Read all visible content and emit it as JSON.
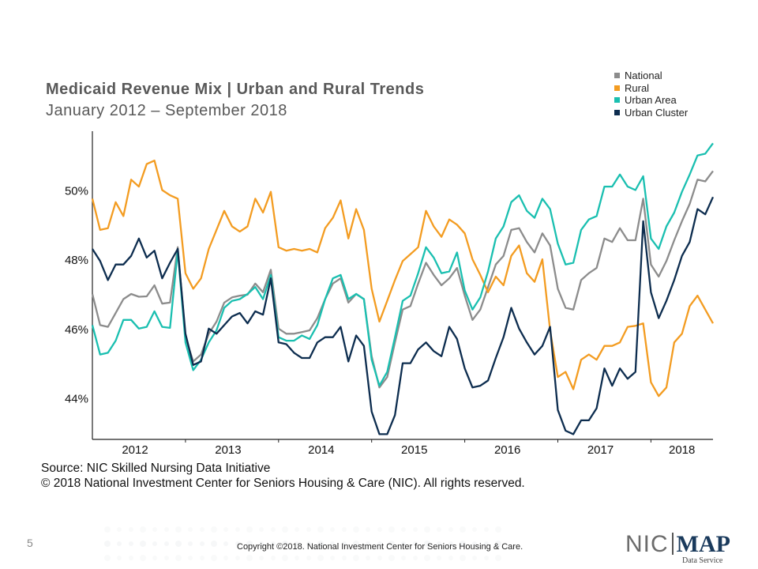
{
  "chart_data": {
    "type": "line",
    "title": "Medicaid Revenue Mix | Urban and Rural Trends",
    "subtitle": "January 2012 – September 2018",
    "y_ticks": [
      44,
      46,
      48,
      50
    ],
    "y_tick_labels": [
      "44%",
      "46%",
      "48%",
      "50%"
    ],
    "ylim": [
      42.8,
      51.7
    ],
    "x_start": "2012-01",
    "x_end": "2018-09",
    "x_tick_labels": [
      "2012",
      "2013",
      "2014",
      "2015",
      "2016",
      "2017",
      "2018"
    ],
    "legend_position": "top-right",
    "series": [
      {
        "name": "National",
        "color": "#8c8c8c",
        "values": [
          47.0,
          46.1,
          46.05,
          46.45,
          46.85,
          47.0,
          46.92,
          46.93,
          47.25,
          46.72,
          46.75,
          48.35,
          45.75,
          45.05,
          45.25,
          45.85,
          46.2,
          46.75,
          46.9,
          46.95,
          46.98,
          47.3,
          47.05,
          47.7,
          46.0,
          45.85,
          45.85,
          45.9,
          45.95,
          46.3,
          46.85,
          47.3,
          47.45,
          46.75,
          47.0,
          46.85,
          45.2,
          44.3,
          44.6,
          45.6,
          46.55,
          46.65,
          47.3,
          47.9,
          47.55,
          47.25,
          47.45,
          47.75,
          46.95,
          46.25,
          46.55,
          47.2,
          47.85,
          48.1,
          48.85,
          48.9,
          48.5,
          48.2,
          48.75,
          48.4,
          47.15,
          46.6,
          46.55,
          47.4,
          47.6,
          47.75,
          48.6,
          48.5,
          48.9,
          48.55,
          48.55,
          49.75,
          47.85,
          47.5,
          47.95,
          48.55,
          49.1,
          49.6,
          50.3,
          50.25,
          50.55
        ]
      },
      {
        "name": "Rural",
        "color": "#f39c21",
        "values": [
          49.75,
          48.85,
          48.9,
          49.65,
          49.25,
          50.3,
          50.1,
          50.75,
          50.85,
          50.0,
          49.85,
          49.75,
          47.6,
          47.15,
          47.45,
          48.3,
          48.85,
          49.4,
          48.95,
          48.8,
          48.95,
          49.75,
          49.35,
          49.95,
          48.35,
          48.25,
          48.3,
          48.25,
          48.3,
          48.2,
          48.9,
          49.2,
          49.7,
          48.6,
          49.45,
          48.85,
          47.15,
          46.2,
          46.8,
          47.4,
          47.95,
          48.15,
          48.35,
          49.4,
          48.95,
          48.65,
          49.15,
          49.0,
          48.75,
          48.0,
          47.55,
          47.05,
          47.5,
          47.25,
          48.1,
          48.4,
          47.6,
          47.35,
          48.0,
          45.95,
          44.6,
          44.75,
          44.25,
          45.1,
          45.25,
          45.1,
          45.5,
          45.5,
          45.6,
          46.05,
          46.08,
          46.15,
          44.45,
          44.05,
          44.3,
          45.6,
          45.85,
          46.65,
          46.95,
          46.55,
          46.15
        ]
      },
      {
        "name": "Urban Area",
        "color": "#1abfb0",
        "values": [
          46.1,
          45.25,
          45.3,
          45.65,
          46.25,
          46.25,
          46.0,
          46.05,
          46.5,
          46.05,
          46.02,
          48.25,
          45.6,
          44.8,
          45.1,
          45.6,
          45.95,
          46.6,
          46.8,
          46.85,
          47.0,
          47.2,
          46.85,
          47.55,
          45.75,
          45.65,
          45.65,
          45.8,
          45.7,
          46.1,
          46.85,
          47.45,
          47.55,
          46.85,
          47.0,
          46.85,
          45.1,
          44.35,
          44.75,
          45.75,
          46.8,
          46.95,
          47.6,
          48.35,
          48.05,
          47.6,
          47.65,
          48.2,
          47.1,
          46.55,
          46.9,
          47.65,
          48.6,
          48.95,
          49.65,
          49.85,
          49.4,
          49.2,
          49.75,
          49.45,
          48.45,
          47.85,
          47.9,
          48.85,
          49.15,
          49.25,
          50.1,
          50.1,
          50.45,
          50.1,
          50.0,
          50.4,
          48.6,
          48.3,
          48.95,
          49.35,
          49.95,
          50.45,
          51.0,
          51.05,
          51.35
        ]
      },
      {
        "name": "Urban Cluster",
        "color": "#0d2d4f",
        "values": [
          48.3,
          47.95,
          47.4,
          47.85,
          47.85,
          48.1,
          48.6,
          48.05,
          48.25,
          47.45,
          47.9,
          48.3,
          45.85,
          44.95,
          45.05,
          46.0,
          45.85,
          46.1,
          46.35,
          46.45,
          46.15,
          46.5,
          46.4,
          47.45,
          45.6,
          45.55,
          45.3,
          45.15,
          45.15,
          45.6,
          45.75,
          45.75,
          46.05,
          45.05,
          45.8,
          45.5,
          43.6,
          42.95,
          42.95,
          43.5,
          45.0,
          45.0,
          45.4,
          45.6,
          45.35,
          45.2,
          46.05,
          45.7,
          44.85,
          44.3,
          44.35,
          44.5,
          45.15,
          45.75,
          46.6,
          46.0,
          45.6,
          45.25,
          45.5,
          46.05,
          43.65,
          43.05,
          42.95,
          43.35,
          43.35,
          43.7,
          44.85,
          44.35,
          44.85,
          44.55,
          44.75,
          49.1,
          47.05,
          46.3,
          46.8,
          47.4,
          48.1,
          48.5,
          49.45,
          49.3,
          49.8
        ]
      }
    ]
  },
  "footer": {
    "source_line": "Source: NIC Skilled Nursing Data Initiative",
    "copyright_line": "© 2018 National Investment Center for Seniors Housing & Care (NIC). All rights reserved.",
    "page_number": "5",
    "copyright_small": "Copyright ©2018. National Investment Center for Seniors Housing & Care.",
    "logo_left": "NIC",
    "logo_right": "MAP",
    "logo_sub": "Data Service"
  }
}
